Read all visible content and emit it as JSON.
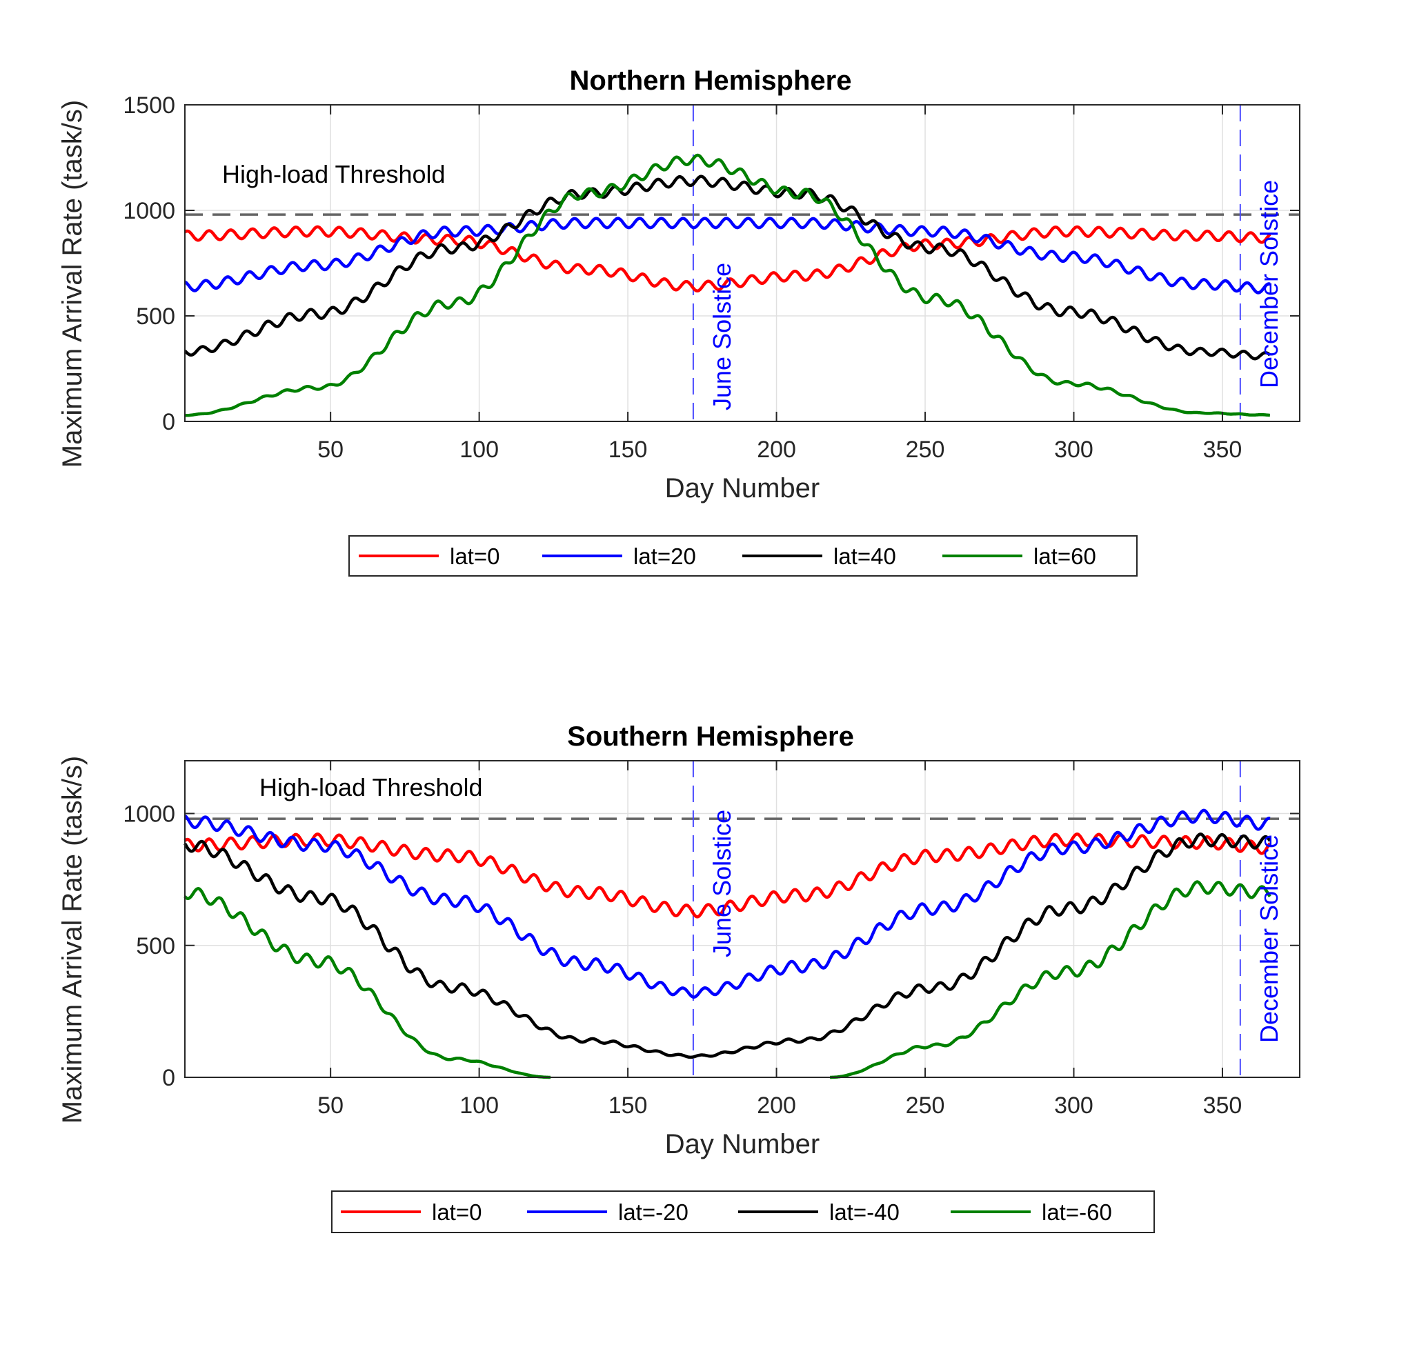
{
  "chart_data": [
    {
      "type": "line",
      "title": "Northern Hemisphere",
      "xlabel": "Day Number",
      "ylabel": "Maximum Arrival Rate (task/s)",
      "xlim": [
        1,
        376
      ],
      "ylim": [
        0,
        1500
      ],
      "xticks": [
        50,
        100,
        150,
        200,
        250,
        300,
        350
      ],
      "yticks": [
        0,
        500,
        1000,
        1500
      ],
      "grid": true,
      "legend_position": "bottom-outside",
      "threshold": {
        "label": "High-load Threshold",
        "value": 980
      },
      "vlines": [
        {
          "label": "June Solstice",
          "x": 172
        },
        {
          "label": "December Solstice",
          "x": 356
        }
      ],
      "series": [
        {
          "name": "lat=0",
          "color": "#ff0000",
          "x": [
            1,
            46,
            91,
            136,
            172,
            208,
            253,
            298,
            343,
            366
          ],
          "y": [
            880,
            900,
            860,
            720,
            640,
            690,
            840,
            900,
            880,
            870
          ]
        },
        {
          "name": "lat=20",
          "color": "#0000ff",
          "x": [
            1,
            46,
            91,
            136,
            172,
            208,
            253,
            298,
            343,
            366
          ],
          "y": [
            640,
            740,
            900,
            940,
            940,
            940,
            900,
            780,
            650,
            630
          ]
        },
        {
          "name": "lat=40",
          "color": "#000000",
          "x": [
            1,
            46,
            91,
            136,
            172,
            208,
            253,
            298,
            343,
            366
          ],
          "y": [
            330,
            510,
            820,
            1080,
            1140,
            1080,
            820,
            520,
            330,
            310
          ]
        },
        {
          "name": "lat=60",
          "color": "#008000",
          "x": [
            1,
            46,
            91,
            136,
            172,
            208,
            253,
            298,
            343,
            366
          ],
          "y": [
            30,
            160,
            560,
            1080,
            1240,
            1080,
            580,
            180,
            40,
            30
          ]
        }
      ]
    },
    {
      "type": "line",
      "title": "Southern Hemisphere",
      "xlabel": "Day Number",
      "ylabel": "Maximum Arrival Rate (task/s)",
      "xlim": [
        1,
        376
      ],
      "ylim": [
        0,
        1200
      ],
      "xticks": [
        50,
        100,
        150,
        200,
        250,
        300,
        350
      ],
      "yticks": [
        0,
        500,
        1000
      ],
      "grid": true,
      "legend_position": "bottom-outside",
      "threshold": {
        "label": "High-load Threshold",
        "value": 980
      },
      "vlines": [
        {
          "label": "June Solstice",
          "x": 172
        },
        {
          "label": "December Solstice",
          "x": 356
        }
      ],
      "series": [
        {
          "name": "lat=0",
          "color": "#ff0000",
          "x": [
            1,
            46,
            91,
            136,
            172,
            208,
            253,
            298,
            343,
            366
          ],
          "y": [
            880,
            900,
            840,
            700,
            630,
            690,
            840,
            900,
            890,
            870
          ]
        },
        {
          "name": "lat=-20",
          "color": "#0000ff",
          "x": [
            1,
            46,
            91,
            136,
            172,
            208,
            253,
            298,
            343,
            366
          ],
          "y": [
            970,
            880,
            670,
            430,
            320,
            420,
            640,
            870,
            990,
            960
          ]
        },
        {
          "name": "lat=-40",
          "color": "#000000",
          "x": [
            1,
            46,
            91,
            136,
            172,
            208,
            253,
            298,
            343,
            366
          ],
          "y": [
            880,
            680,
            340,
            140,
            80,
            140,
            340,
            640,
            900,
            890
          ]
        },
        {
          "name": "lat=-60",
          "color": "#008000",
          "x": [
            1,
            46,
            91,
            124,
            218,
            253,
            298,
            343,
            366
          ],
          "y": [
            700,
            440,
            70,
            0,
            0,
            120,
            400,
            720,
            700
          ]
        }
      ]
    }
  ]
}
